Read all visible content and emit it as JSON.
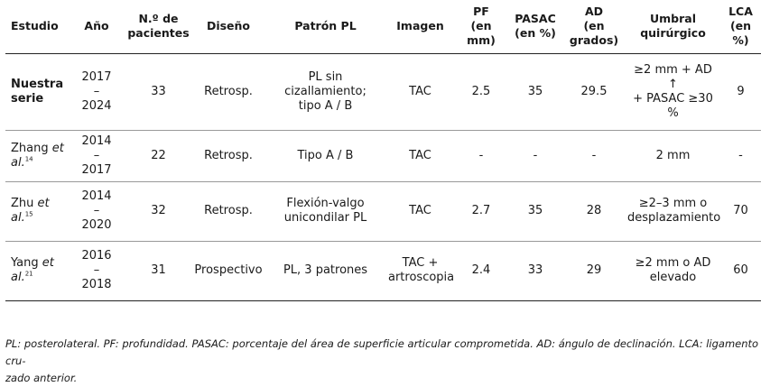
{
  "table": {
    "headers": [
      [
        "Estudio"
      ],
      [
        "Año"
      ],
      [
        "N.º de",
        "pacientes"
      ],
      [
        "Diseño"
      ],
      [
        "Patrón PL"
      ],
      [
        "Imagen"
      ],
      [
        "PF",
        "(en mm)"
      ],
      [
        "PASAC",
        "(en %)"
      ],
      [
        "AD",
        "(en grados)"
      ],
      [
        "Umbral",
        "quirúrgico"
      ],
      [
        "LCA",
        "(en %)"
      ]
    ],
    "rows": [
      {
        "study": [
          "Nuestra",
          "serie"
        ],
        "study_et_al": "",
        "study_ref": "",
        "year": [
          "2017",
          "–",
          "2024"
        ],
        "patients": "33",
        "design": "Retrosp.",
        "pattern": [
          "PL sin",
          "cizallamiento;",
          "tipo A / B"
        ],
        "imaging": [
          "TAC"
        ],
        "pf": "2.5",
        "pasac": "35",
        "ad": "29.5",
        "threshold": [
          "≥2 mm + AD ↑",
          "+ PASAC ≥30 %"
        ],
        "lca": "9"
      },
      {
        "study": [
          "Zhang "
        ],
        "study_et_al": "et",
        "study_al": "al.",
        "study_ref": "14",
        "year": [
          "2014",
          "–",
          "2017"
        ],
        "patients": "22",
        "design": "Retrosp.",
        "pattern": [
          "Tipo A / B"
        ],
        "imaging": [
          "TAC"
        ],
        "pf": "-",
        "pasac": "-",
        "ad": "-",
        "threshold": [
          "2 mm"
        ],
        "lca": "-"
      },
      {
        "study": [
          "Zhu "
        ],
        "study_et_al": "et",
        "study_al": "al.",
        "study_ref": "15",
        "year": [
          "2014",
          "–",
          "2020"
        ],
        "patients": "32",
        "design": "Retrosp.",
        "pattern": [
          "Flexión-valgo",
          "unicondilar PL"
        ],
        "imaging": [
          "TAC"
        ],
        "pf": "2.7",
        "pasac": "35",
        "ad": "28",
        "threshold": [
          "≥2–3 mm o",
          "desplazamiento"
        ],
        "lca": "70"
      },
      {
        "study": [
          "Yang "
        ],
        "study_et_al": "et",
        "study_al": "al.",
        "study_ref": "21",
        "year": [
          "2016",
          "–",
          "2018"
        ],
        "patients": "31",
        "design": "Prospectivo",
        "pattern": [
          "PL, 3 patrones"
        ],
        "imaging": [
          "TAC +",
          "artroscopia"
        ],
        "pf": "2.4",
        "pasac": "33",
        "ad": "29",
        "threshold": [
          "≥2 mm o AD",
          "elevado"
        ],
        "lca": "60"
      }
    ]
  },
  "footnote": {
    "line1": "PL: posterolateral. PF: profundidad. PASAC: porcentaje del área de superficie articular comprometida. AD: ángulo de declinación. LCA: ligamento cru-",
    "line2": "zado anterior."
  }
}
